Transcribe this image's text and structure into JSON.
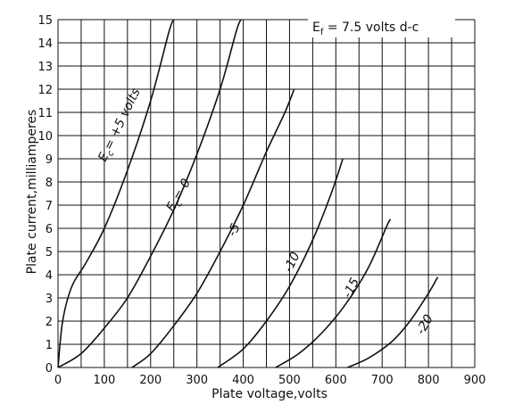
{
  "chart_data": {
    "type": "line",
    "title": "",
    "xlabel": "Plate voltage,volts",
    "ylabel": "Plate current,milliamperes",
    "xlim": [
      0,
      900
    ],
    "ylim": [
      0,
      15
    ],
    "x_ticks": [
      "0",
      "100",
      "200",
      "300",
      "400",
      "500",
      "600",
      "700",
      "800",
      "900"
    ],
    "y_ticks": [
      "0",
      "1",
      "2",
      "3",
      "4",
      "5",
      "6",
      "7",
      "8",
      "9",
      "10",
      "11",
      "12",
      "13",
      "14",
      "15"
    ],
    "grid": true,
    "annotation": "Ef = 7.5 volts d-c",
    "series": [
      {
        "name": "Ec = +5 volts",
        "points": [
          [
            0,
            0
          ],
          [
            10,
            2.0
          ],
          [
            30,
            3.5
          ],
          [
            60,
            4.5
          ],
          [
            100,
            6.0
          ],
          [
            150,
            8.5
          ],
          [
            200,
            11.5
          ],
          [
            240,
            14.5
          ],
          [
            250,
            15.0
          ]
        ]
      },
      {
        "name": "Ec = 0",
        "points": [
          [
            0,
            0
          ],
          [
            50,
            0.6
          ],
          [
            100,
            1.7
          ],
          [
            150,
            3.0
          ],
          [
            200,
            4.8
          ],
          [
            250,
            6.8
          ],
          [
            300,
            9.2
          ],
          [
            350,
            12.0
          ],
          [
            385,
            14.5
          ],
          [
            395,
            15.0
          ]
        ]
      },
      {
        "name": "-5",
        "points": [
          [
            160,
            0
          ],
          [
            200,
            0.6
          ],
          [
            250,
            1.8
          ],
          [
            300,
            3.2
          ],
          [
            350,
            5.0
          ],
          [
            400,
            7.0
          ],
          [
            450,
            9.3
          ],
          [
            490,
            11.0
          ],
          [
            510,
            12.0
          ]
        ]
      },
      {
        "name": "-10",
        "points": [
          [
            345,
            0
          ],
          [
            400,
            0.8
          ],
          [
            450,
            2.0
          ],
          [
            500,
            3.5
          ],
          [
            550,
            5.5
          ],
          [
            590,
            7.5
          ],
          [
            615,
            9.0
          ]
        ]
      },
      {
        "name": "-15",
        "points": [
          [
            470,
            0
          ],
          [
            520,
            0.6
          ],
          [
            570,
            1.5
          ],
          [
            620,
            2.7
          ],
          [
            670,
            4.3
          ],
          [
            710,
            6.1
          ],
          [
            718,
            6.4
          ]
        ]
      },
      {
        "name": "-20",
        "points": [
          [
            625,
            0
          ],
          [
            670,
            0.4
          ],
          [
            720,
            1.1
          ],
          [
            760,
            2.0
          ],
          [
            800,
            3.2
          ],
          [
            820,
            3.9
          ]
        ]
      }
    ]
  }
}
